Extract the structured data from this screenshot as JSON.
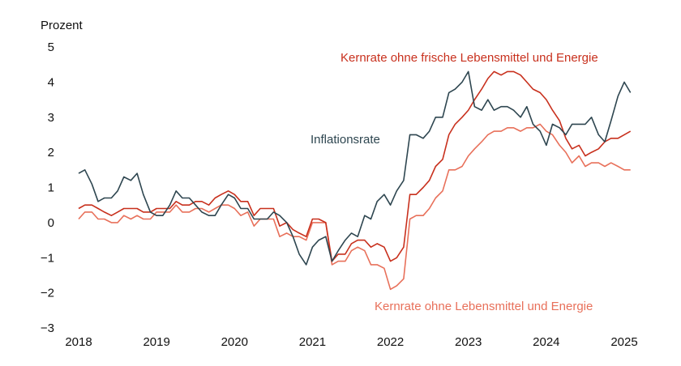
{
  "chart_data": {
    "type": "line",
    "ylabel": "Prozent",
    "ylim": [
      -3,
      5
    ],
    "xlim": [
      2018,
      2025
    ],
    "y_ticks": [
      "5",
      "4",
      "3",
      "2",
      "1",
      "0",
      "−1",
      "−2",
      "−3"
    ],
    "x_ticks": [
      "2018",
      "2019",
      "2020",
      "2021",
      "2022",
      "2023",
      "2024",
      "2025"
    ],
    "grid": false,
    "legend": "inline labels",
    "series": [
      {
        "name": "Inflationsrate",
        "color": "#2e4650",
        "points": [
          [
            2018.0,
            1.4
          ],
          [
            2018.08,
            1.5
          ],
          [
            2018.17,
            1.1
          ],
          [
            2018.25,
            0.6
          ],
          [
            2018.33,
            0.7
          ],
          [
            2018.42,
            0.7
          ],
          [
            2018.5,
            0.9
          ],
          [
            2018.58,
            1.3
          ],
          [
            2018.67,
            1.2
          ],
          [
            2018.75,
            1.4
          ],
          [
            2018.83,
            0.8
          ],
          [
            2018.92,
            0.3
          ],
          [
            2019.0,
            0.2
          ],
          [
            2019.08,
            0.2
          ],
          [
            2019.17,
            0.5
          ],
          [
            2019.25,
            0.9
          ],
          [
            2019.33,
            0.7
          ],
          [
            2019.42,
            0.7
          ],
          [
            2019.5,
            0.5
          ],
          [
            2019.58,
            0.3
          ],
          [
            2019.67,
            0.2
          ],
          [
            2019.75,
            0.2
          ],
          [
            2019.83,
            0.5
          ],
          [
            2019.92,
            0.8
          ],
          [
            2020.0,
            0.7
          ],
          [
            2020.08,
            0.4
          ],
          [
            2020.17,
            0.4
          ],
          [
            2020.25,
            0.1
          ],
          [
            2020.33,
            0.1
          ],
          [
            2020.42,
            0.1
          ],
          [
            2020.5,
            0.3
          ],
          [
            2020.58,
            0.2
          ],
          [
            2020.67,
            0.0
          ],
          [
            2020.75,
            -0.4
          ],
          [
            2020.83,
            -0.9
          ],
          [
            2020.92,
            -1.2
          ],
          [
            2021.0,
            -0.7
          ],
          [
            2021.08,
            -0.5
          ],
          [
            2021.17,
            -0.4
          ],
          [
            2021.25,
            -1.1
          ],
          [
            2021.33,
            -0.8
          ],
          [
            2021.42,
            -0.5
          ],
          [
            2021.5,
            -0.3
          ],
          [
            2021.58,
            -0.4
          ],
          [
            2021.67,
            0.2
          ],
          [
            2021.75,
            0.1
          ],
          [
            2021.83,
            0.6
          ],
          [
            2021.92,
            0.8
          ],
          [
            2022.0,
            0.5
          ],
          [
            2022.08,
            0.9
          ],
          [
            2022.17,
            1.2
          ],
          [
            2022.25,
            2.5
          ],
          [
            2022.33,
            2.5
          ],
          [
            2022.42,
            2.4
          ],
          [
            2022.5,
            2.6
          ],
          [
            2022.58,
            3.0
          ],
          [
            2022.67,
            3.0
          ],
          [
            2022.75,
            3.7
          ],
          [
            2022.83,
            3.8
          ],
          [
            2022.92,
            4.0
          ],
          [
            2023.0,
            4.3
          ],
          [
            2023.08,
            3.3
          ],
          [
            2023.17,
            3.2
          ],
          [
            2023.25,
            3.5
          ],
          [
            2023.33,
            3.2
          ],
          [
            2023.42,
            3.3
          ],
          [
            2023.5,
            3.3
          ],
          [
            2023.58,
            3.2
          ],
          [
            2023.67,
            3.0
          ],
          [
            2023.75,
            3.3
          ],
          [
            2023.83,
            2.8
          ],
          [
            2023.92,
            2.6
          ],
          [
            2024.0,
            2.2
          ],
          [
            2024.08,
            2.8
          ],
          [
            2024.17,
            2.7
          ],
          [
            2024.25,
            2.5
          ],
          [
            2024.33,
            2.8
          ],
          [
            2024.42,
            2.8
          ],
          [
            2024.5,
            2.8
          ],
          [
            2024.58,
            3.0
          ],
          [
            2024.67,
            2.5
          ],
          [
            2024.75,
            2.3
          ],
          [
            2024.83,
            2.9
          ],
          [
            2024.92,
            3.6
          ],
          [
            2025.0,
            4.0
          ],
          [
            2025.08,
            3.7
          ]
        ]
      },
      {
        "name": "Kernrate ohne frische Lebensmittel und Energie",
        "color": "#c8301d",
        "points": [
          [
            2018.0,
            0.4
          ],
          [
            2018.08,
            0.5
          ],
          [
            2018.17,
            0.5
          ],
          [
            2018.25,
            0.4
          ],
          [
            2018.33,
            0.3
          ],
          [
            2018.42,
            0.2
          ],
          [
            2018.5,
            0.3
          ],
          [
            2018.58,
            0.4
          ],
          [
            2018.67,
            0.4
          ],
          [
            2018.75,
            0.4
          ],
          [
            2018.83,
            0.3
          ],
          [
            2018.92,
            0.3
          ],
          [
            2019.0,
            0.4
          ],
          [
            2019.08,
            0.4
          ],
          [
            2019.17,
            0.4
          ],
          [
            2019.25,
            0.6
          ],
          [
            2019.33,
            0.5
          ],
          [
            2019.42,
            0.5
          ],
          [
            2019.5,
            0.6
          ],
          [
            2019.58,
            0.6
          ],
          [
            2019.67,
            0.5
          ],
          [
            2019.75,
            0.7
          ],
          [
            2019.83,
            0.8
          ],
          [
            2019.92,
            0.9
          ],
          [
            2020.0,
            0.8
          ],
          [
            2020.08,
            0.6
          ],
          [
            2020.17,
            0.6
          ],
          [
            2020.25,
            0.2
          ],
          [
            2020.33,
            0.4
          ],
          [
            2020.42,
            0.4
          ],
          [
            2020.5,
            0.4
          ],
          [
            2020.58,
            -0.1
          ],
          [
            2020.67,
            0.0
          ],
          [
            2020.75,
            -0.2
          ],
          [
            2020.83,
            -0.3
          ],
          [
            2020.92,
            -0.4
          ],
          [
            2021.0,
            0.1
          ],
          [
            2021.08,
            0.1
          ],
          [
            2021.17,
            0.0
          ],
          [
            2021.25,
            -1.1
          ],
          [
            2021.33,
            -0.9
          ],
          [
            2021.42,
            -0.9
          ],
          [
            2021.5,
            -0.6
          ],
          [
            2021.58,
            -0.5
          ],
          [
            2021.67,
            -0.5
          ],
          [
            2021.75,
            -0.7
          ],
          [
            2021.83,
            -0.6
          ],
          [
            2021.92,
            -0.7
          ],
          [
            2022.0,
            -1.1
          ],
          [
            2022.08,
            -1.0
          ],
          [
            2022.17,
            -0.7
          ],
          [
            2022.25,
            0.8
          ],
          [
            2022.33,
            0.8
          ],
          [
            2022.42,
            1.0
          ],
          [
            2022.5,
            1.2
          ],
          [
            2022.58,
            1.6
          ],
          [
            2022.67,
            1.8
          ],
          [
            2022.75,
            2.5
          ],
          [
            2022.83,
            2.8
          ],
          [
            2022.92,
            3.0
          ],
          [
            2023.0,
            3.2
          ],
          [
            2023.08,
            3.5
          ],
          [
            2023.17,
            3.8
          ],
          [
            2023.25,
            4.1
          ],
          [
            2023.33,
            4.3
          ],
          [
            2023.42,
            4.2
          ],
          [
            2023.5,
            4.3
          ],
          [
            2023.58,
            4.3
          ],
          [
            2023.67,
            4.2
          ],
          [
            2023.75,
            4.0
          ],
          [
            2023.83,
            3.8
          ],
          [
            2023.92,
            3.7
          ],
          [
            2024.0,
            3.5
          ],
          [
            2024.08,
            3.2
          ],
          [
            2024.17,
            2.9
          ],
          [
            2024.25,
            2.4
          ],
          [
            2024.33,
            2.1
          ],
          [
            2024.42,
            2.2
          ],
          [
            2024.5,
            1.9
          ],
          [
            2024.58,
            2.0
          ],
          [
            2024.67,
            2.1
          ],
          [
            2024.75,
            2.3
          ],
          [
            2024.83,
            2.4
          ],
          [
            2024.92,
            2.4
          ],
          [
            2025.0,
            2.5
          ],
          [
            2025.08,
            2.6
          ]
        ]
      },
      {
        "name": "Kernrate ohne Lebensmittel und Energie",
        "color": "#e8705a",
        "points": [
          [
            2018.0,
            0.1
          ],
          [
            2018.08,
            0.3
          ],
          [
            2018.17,
            0.3
          ],
          [
            2018.25,
            0.1
          ],
          [
            2018.33,
            0.1
          ],
          [
            2018.42,
            0.0
          ],
          [
            2018.5,
            0.0
          ],
          [
            2018.58,
            0.2
          ],
          [
            2018.67,
            0.1
          ],
          [
            2018.75,
            0.2
          ],
          [
            2018.83,
            0.1
          ],
          [
            2018.92,
            0.1
          ],
          [
            2019.0,
            0.3
          ],
          [
            2019.08,
            0.3
          ],
          [
            2019.17,
            0.3
          ],
          [
            2019.25,
            0.5
          ],
          [
            2019.33,
            0.3
          ],
          [
            2019.42,
            0.3
          ],
          [
            2019.5,
            0.4
          ],
          [
            2019.58,
            0.4
          ],
          [
            2019.67,
            0.3
          ],
          [
            2019.75,
            0.4
          ],
          [
            2019.83,
            0.5
          ],
          [
            2019.92,
            0.5
          ],
          [
            2020.0,
            0.4
          ],
          [
            2020.08,
            0.2
          ],
          [
            2020.17,
            0.3
          ],
          [
            2020.25,
            -0.1
          ],
          [
            2020.33,
            0.1
          ],
          [
            2020.42,
            0.1
          ],
          [
            2020.5,
            0.1
          ],
          [
            2020.58,
            -0.4
          ],
          [
            2020.67,
            -0.3
          ],
          [
            2020.75,
            -0.4
          ],
          [
            2020.83,
            -0.4
          ],
          [
            2020.92,
            -0.5
          ],
          [
            2021.0,
            0.0
          ],
          [
            2021.08,
            0.0
          ],
          [
            2021.17,
            0.0
          ],
          [
            2021.25,
            -1.2
          ],
          [
            2021.33,
            -1.1
          ],
          [
            2021.42,
            -1.1
          ],
          [
            2021.5,
            -0.8
          ],
          [
            2021.58,
            -0.7
          ],
          [
            2021.67,
            -0.8
          ],
          [
            2021.75,
            -1.2
          ],
          [
            2021.83,
            -1.2
          ],
          [
            2021.92,
            -1.3
          ],
          [
            2022.0,
            -1.9
          ],
          [
            2022.08,
            -1.8
          ],
          [
            2022.17,
            -1.6
          ],
          [
            2022.25,
            0.1
          ],
          [
            2022.33,
            0.2
          ],
          [
            2022.42,
            0.2
          ],
          [
            2022.5,
            0.4
          ],
          [
            2022.58,
            0.7
          ],
          [
            2022.67,
            0.9
          ],
          [
            2022.75,
            1.5
          ],
          [
            2022.83,
            1.5
          ],
          [
            2022.92,
            1.6
          ],
          [
            2023.0,
            1.9
          ],
          [
            2023.08,
            2.1
          ],
          [
            2023.17,
            2.3
          ],
          [
            2023.25,
            2.5
          ],
          [
            2023.33,
            2.6
          ],
          [
            2023.42,
            2.6
          ],
          [
            2023.5,
            2.7
          ],
          [
            2023.58,
            2.7
          ],
          [
            2023.67,
            2.6
          ],
          [
            2023.75,
            2.7
          ],
          [
            2023.83,
            2.7
          ],
          [
            2023.92,
            2.8
          ],
          [
            2024.0,
            2.6
          ],
          [
            2024.08,
            2.5
          ],
          [
            2024.17,
            2.2
          ],
          [
            2024.25,
            2.0
          ],
          [
            2024.33,
            1.7
          ],
          [
            2024.42,
            1.9
          ],
          [
            2024.5,
            1.6
          ],
          [
            2024.58,
            1.7
          ],
          [
            2024.67,
            1.7
          ],
          [
            2024.75,
            1.6
          ],
          [
            2024.83,
            1.7
          ],
          [
            2024.92,
            1.6
          ],
          [
            2025.0,
            1.5
          ],
          [
            2025.08,
            1.5
          ]
        ]
      }
    ]
  }
}
